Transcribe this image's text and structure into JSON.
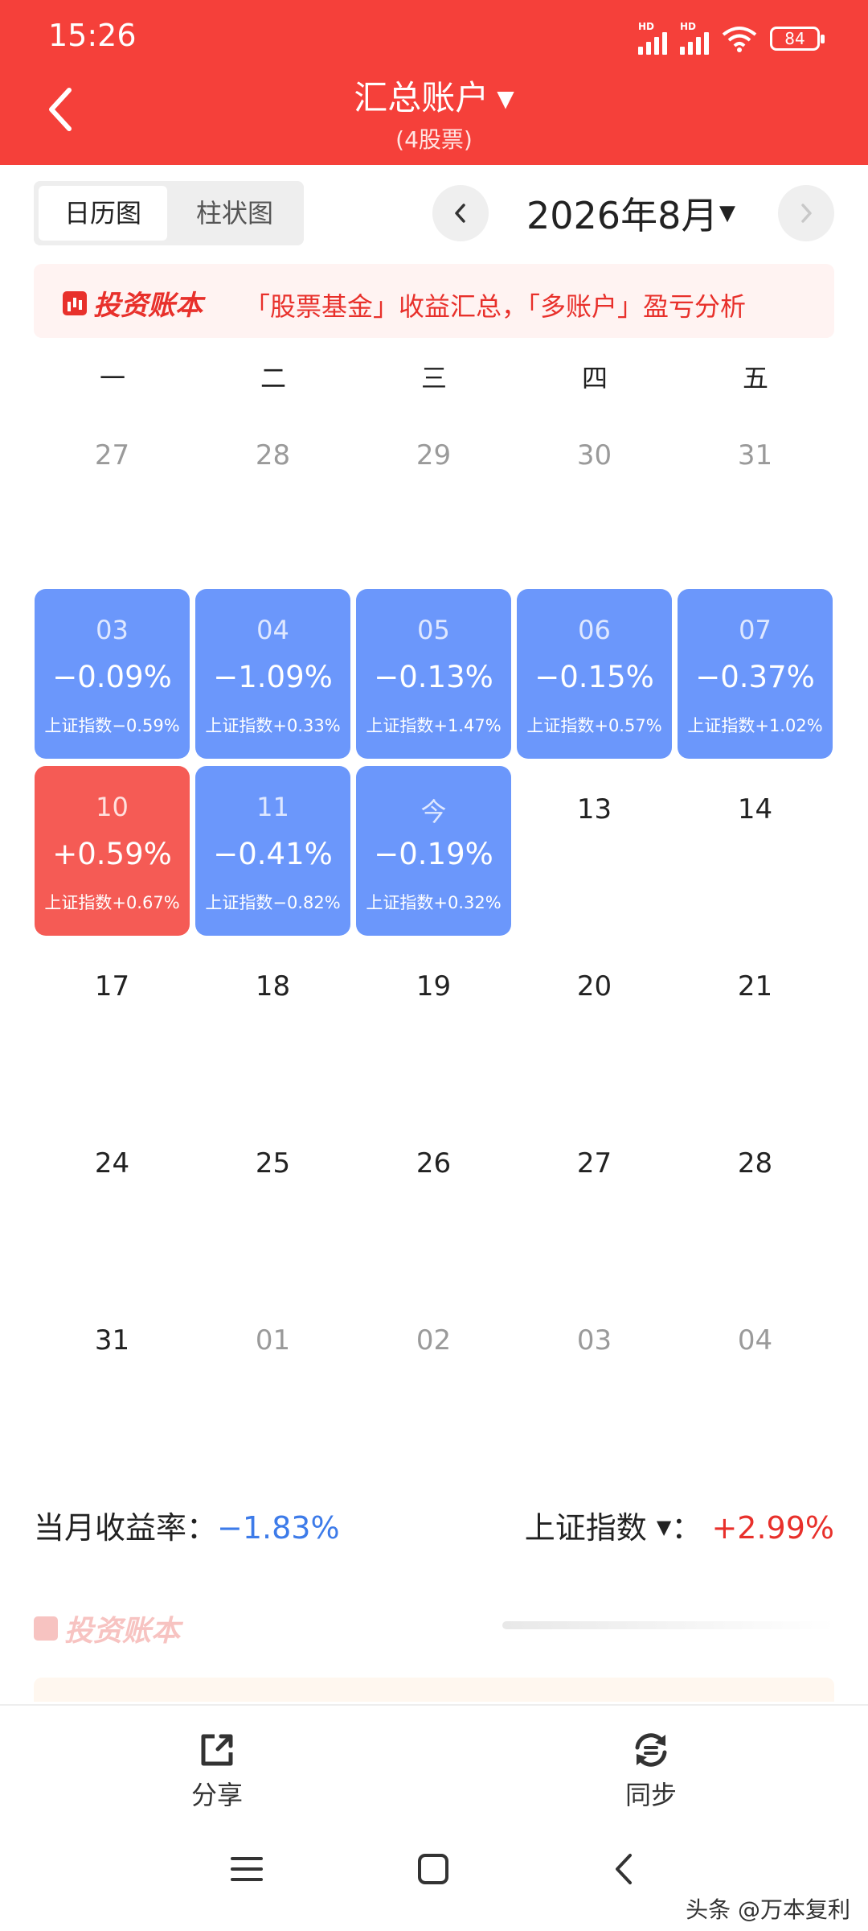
{
  "status_bar": {
    "time": "15:26",
    "signal1": "HD",
    "signal2": "HD",
    "battery": "84"
  },
  "header": {
    "title": "汇总账户",
    "subtitle": "(4股票)"
  },
  "view_toggle": {
    "calendar": "日历图",
    "bar": "柱状图"
  },
  "month_nav": {
    "label": "2026年8月"
  },
  "banner": {
    "logo": "投资账本",
    "text": "「股票基金」收益汇总，「多账户」盈亏分析"
  },
  "weekdays": [
    "一",
    "二",
    "三",
    "四",
    "五"
  ],
  "calendar": {
    "row1": [
      "27",
      "28",
      "29",
      "30",
      "31"
    ],
    "row2": [
      {
        "day": "03",
        "pct": "−0.09%",
        "idx": "上证指数−0.59%"
      },
      {
        "day": "04",
        "pct": "−1.09%",
        "idx": "上证指数+0.33%"
      },
      {
        "day": "05",
        "pct": "−0.13%",
        "idx": "上证指数+1.47%"
      },
      {
        "day": "06",
        "pct": "−0.15%",
        "idx": "上证指数+0.57%"
      },
      {
        "day": "07",
        "pct": "−0.37%",
        "idx": "上证指数+1.02%"
      }
    ],
    "row3": [
      {
        "day": "10",
        "pct": "+0.59%",
        "idx": "上证指数+0.67%"
      },
      {
        "day": "11",
        "pct": "−0.41%",
        "idx": "上证指数−0.82%"
      },
      {
        "day": "今",
        "pct": "−0.19%",
        "idx": "上证指数+0.32%"
      },
      {
        "day": "13"
      },
      {
        "day": "14"
      }
    ],
    "row4": [
      "17",
      "18",
      "19",
      "20",
      "21"
    ],
    "row5": [
      "24",
      "25",
      "26",
      "27",
      "28"
    ],
    "row6": [
      "31",
      "01",
      "02",
      "03",
      "04"
    ]
  },
  "summary": {
    "monthly_label": "当月收益率：",
    "monthly_value": "−1.83%",
    "index_label": "上证指数",
    "index_sep": "：",
    "index_value": "+2.99%"
  },
  "footer_logo": "投资账本",
  "actions": {
    "share": "分享",
    "sync": "同步"
  },
  "watermark": "头条 @万本复利",
  "colors": {
    "header": "#f5403a",
    "loss": "#6b97fb",
    "gain": "#f55b55"
  }
}
